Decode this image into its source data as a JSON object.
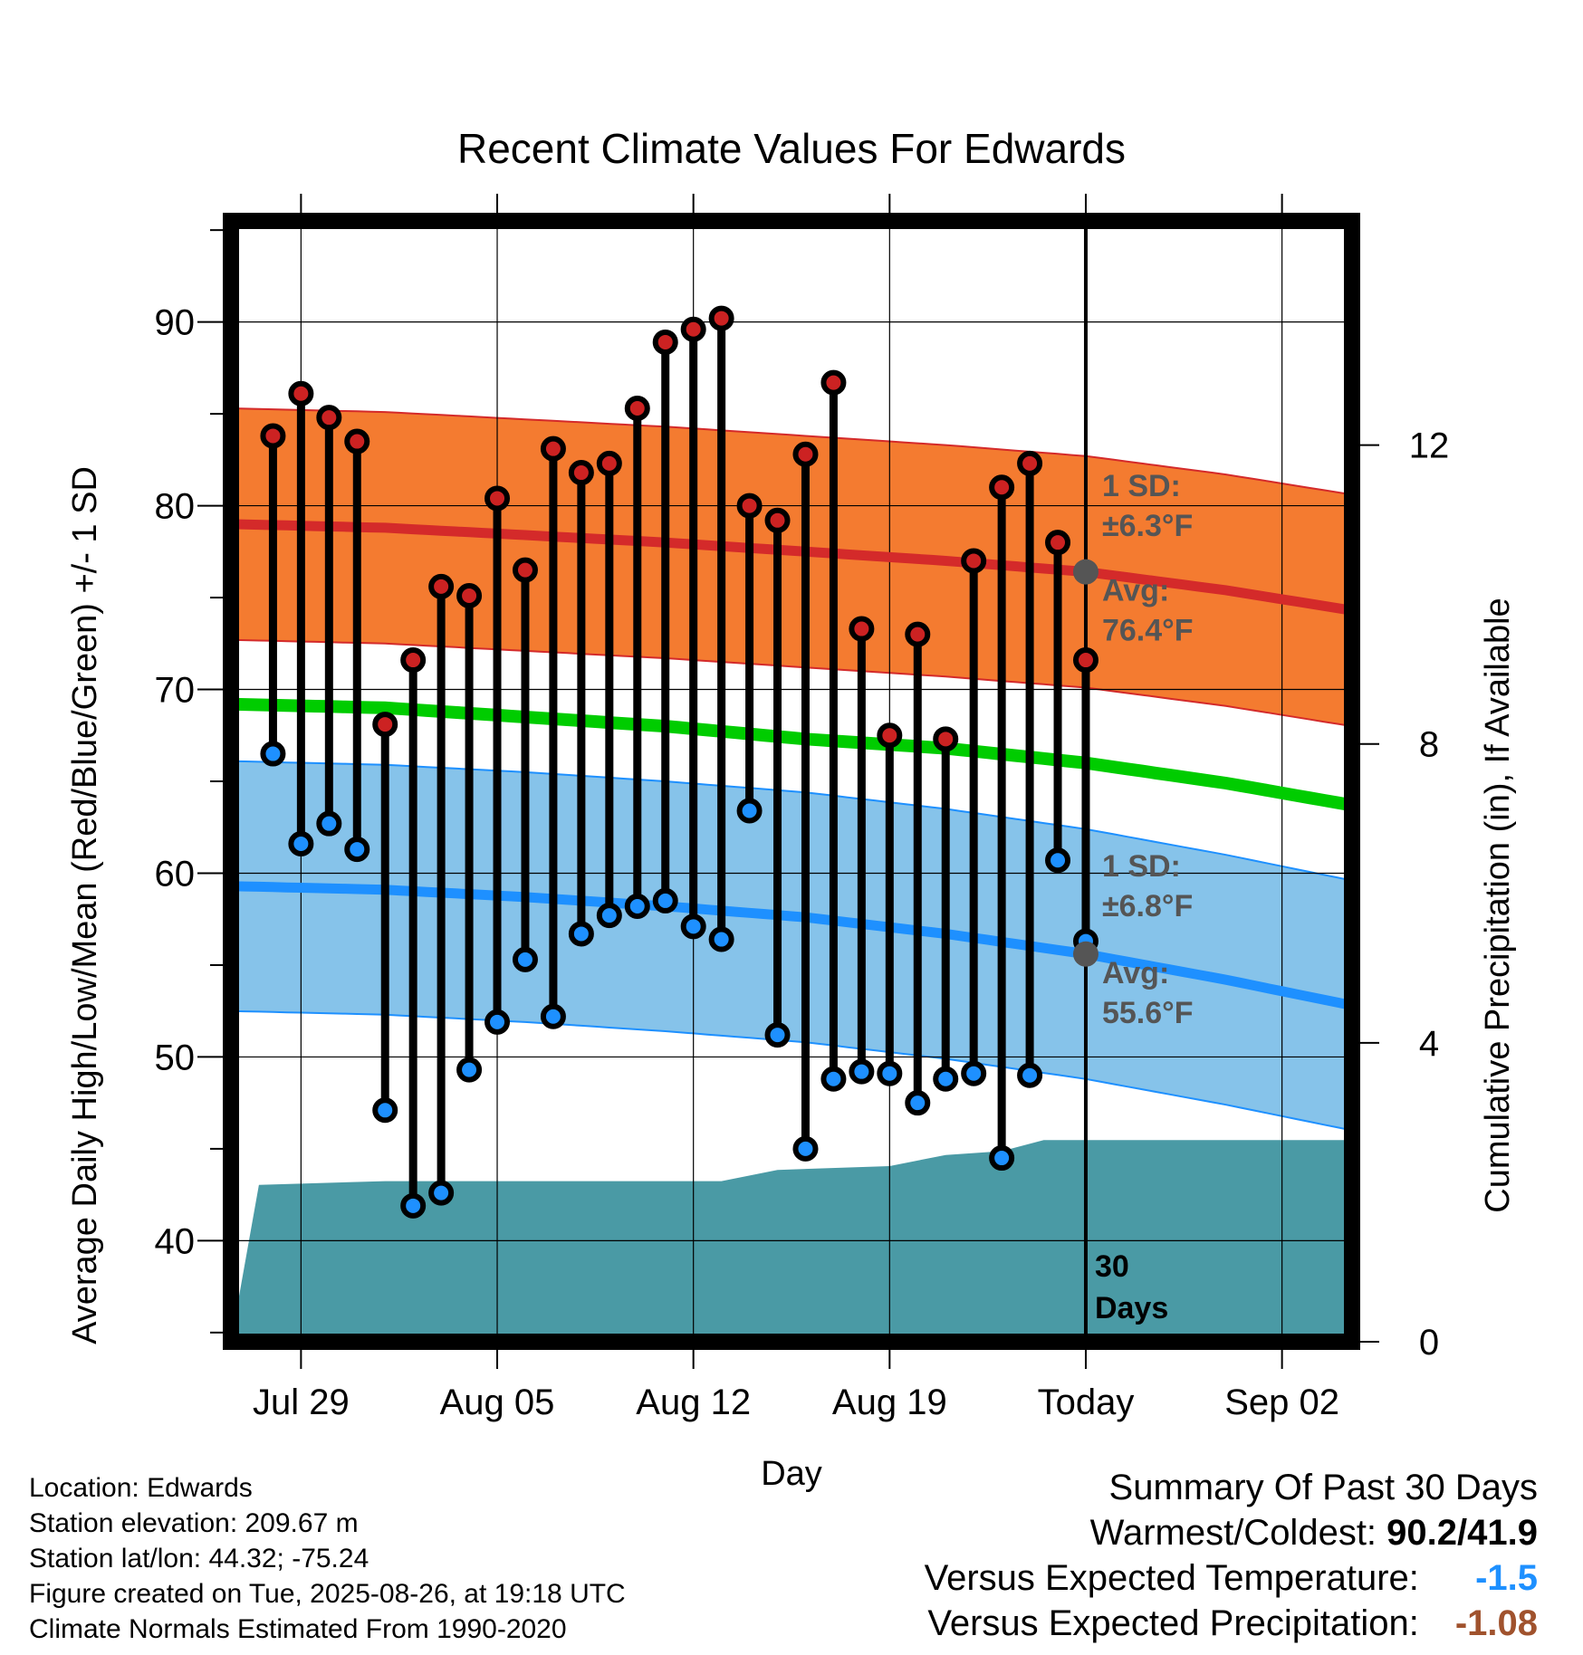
{
  "chart_data": {
    "type": "line",
    "title": "Recent Climate Values For Edwards",
    "xlabel": "Day",
    "ylabel": "Average Daily High/Low/Mean (Red/Blue/Green) +/- 1 SD",
    "y2label": "Cumulative Precipitation (in), If Available",
    "xticks": [
      "Jul 29",
      "Aug 05",
      "Aug 12",
      "Aug 19",
      "Today",
      "Sep 02"
    ],
    "yticks": [
      40,
      50,
      60,
      70,
      80,
      90
    ],
    "y2ticks": [
      0,
      4,
      8,
      12
    ],
    "xlim_days": [
      -30.5,
      9.5
    ],
    "ylim": [
      34.5,
      95.5
    ],
    "y2lim": [
      0,
      15
    ],
    "grid": true,
    "colors": {
      "high_band": "#f47b30",
      "high_avg": "#d42a2a",
      "low_band": "#86c3ea",
      "low_avg": "#1e90ff",
      "mean": "#00cc00",
      "precip": "#4a9aa5",
      "high_marker": "#cc2222",
      "low_marker": "#1e90ff",
      "today_marker": "#555555"
    },
    "normals_high": {
      "avg": [
        [
          -30.5,
          79.0
        ],
        [
          -25,
          78.8
        ],
        [
          -20,
          78.4
        ],
        [
          -15,
          78.0
        ],
        [
          -10,
          77.5
        ],
        [
          -5,
          77.0
        ],
        [
          0,
          76.4
        ],
        [
          5,
          75.4
        ],
        [
          9.5,
          74.3
        ]
      ],
      "sd": 6.3
    },
    "normals_low": {
      "avg": [
        [
          -30.5,
          59.3
        ],
        [
          -25,
          59.1
        ],
        [
          -20,
          58.7
        ],
        [
          -15,
          58.2
        ],
        [
          -10,
          57.6
        ],
        [
          -5,
          56.7
        ],
        [
          0,
          55.6
        ],
        [
          5,
          54.2
        ],
        [
          9.5,
          52.8
        ]
      ],
      "sd": 6.8
    },
    "normals_mean": [
      [
        -30.5,
        69.2
      ],
      [
        -25,
        69.0
      ],
      [
        -20,
        68.5
      ],
      [
        -15,
        68.0
      ],
      [
        -10,
        67.3
      ],
      [
        -5,
        66.8
      ],
      [
        0,
        66.0
      ],
      [
        5,
        64.9
      ],
      [
        9.5,
        63.7
      ]
    ],
    "observations": [
      {
        "day": -29,
        "high": 83.8,
        "low": 66.5
      },
      {
        "day": -28,
        "high": 86.1,
        "low": 61.6
      },
      {
        "day": -27,
        "high": 84.8,
        "low": 62.7
      },
      {
        "day": -26,
        "high": 83.5,
        "low": 61.3
      },
      {
        "day": -25,
        "high": 68.1,
        "low": 47.1
      },
      {
        "day": -24,
        "high": 71.6,
        "low": 41.9
      },
      {
        "day": -23,
        "high": 75.6,
        "low": 42.6
      },
      {
        "day": -22,
        "high": 75.1,
        "low": 49.3
      },
      {
        "day": -21,
        "high": 80.4,
        "low": 51.9
      },
      {
        "day": -20,
        "high": 76.5,
        "low": 55.3
      },
      {
        "day": -19,
        "high": 83.1,
        "low": 52.2
      },
      {
        "day": -18,
        "high": 81.8,
        "low": 56.7
      },
      {
        "day": -17,
        "high": 82.3,
        "low": 57.7
      },
      {
        "day": -16,
        "high": 85.3,
        "low": 58.2
      },
      {
        "day": -15,
        "high": 88.9,
        "low": 58.5
      },
      {
        "day": -14,
        "high": 89.6,
        "low": 57.1
      },
      {
        "day": -13,
        "high": 90.2,
        "low": 56.4
      },
      {
        "day": -12,
        "high": 80.0,
        "low": 63.4
      },
      {
        "day": -11,
        "high": 79.2,
        "low": 51.2
      },
      {
        "day": -10,
        "high": 82.8,
        "low": 45.0
      },
      {
        "day": -9,
        "high": 86.7,
        "low": 48.8
      },
      {
        "day": -8,
        "high": 73.3,
        "low": 49.2
      },
      {
        "day": -7,
        "high": 67.5,
        "low": 49.1
      },
      {
        "day": -6,
        "high": 73.0,
        "low": 47.5
      },
      {
        "day": -5,
        "high": 67.3,
        "low": 48.8
      },
      {
        "day": -4,
        "high": 77.0,
        "low": 49.1
      },
      {
        "day": -3,
        "high": 81.0,
        "low": 44.5
      },
      {
        "day": -2,
        "high": 82.3,
        "low": 49.0
      },
      {
        "day": -1,
        "high": 78.0,
        "low": 60.7
      },
      {
        "day": 0,
        "high": 71.6,
        "low": 56.3
      }
    ],
    "precipitation_cumulative": [
      [
        -30.5,
        0.0
      ],
      [
        -29.5,
        2.1
      ],
      [
        -25,
        2.15
      ],
      [
        -13,
        2.15
      ],
      [
        -11,
        2.3
      ],
      [
        -7,
        2.35
      ],
      [
        -5,
        2.5
      ],
      [
        -3,
        2.55
      ],
      [
        -1.5,
        2.7
      ],
      [
        9.5,
        2.7
      ]
    ],
    "today_label": "Today",
    "today_high_avg": 76.4,
    "today_low_avg": 55.6,
    "annotations": {
      "high_sd_title": "1 SD:",
      "high_sd_value": "±6.3°F",
      "high_avg_title": "Avg:",
      "high_avg_value": "76.4°F",
      "low_sd_title": "1 SD:",
      "low_sd_value": "±6.8°F",
      "low_avg_title": "Avg:",
      "low_avg_value": "55.6°F",
      "window_count": "30",
      "window_unit": "Days"
    }
  },
  "station": {
    "location": "Location: Edwards",
    "elevation": "Station elevation: 209.67 m",
    "latlon": "Station lat/lon: 44.32; -75.24",
    "created": "Figure created on Tue, 2025-08-26, at 19:18 UTC",
    "normals": "Climate Normals Estimated From 1990-2020"
  },
  "summary": {
    "title": "Summary Of Past 30 Days",
    "warm_cold_label": "Warmest/Coldest:",
    "warm_cold_value": "90.2/41.9",
    "temp_label": "Versus Expected Temperature:",
    "temp_value": "-1.5",
    "temp_color": "#1e90ff",
    "precip_label": "Versus Expected Precipitation:",
    "precip_value": "-1.08",
    "precip_color": "#a0522d"
  }
}
